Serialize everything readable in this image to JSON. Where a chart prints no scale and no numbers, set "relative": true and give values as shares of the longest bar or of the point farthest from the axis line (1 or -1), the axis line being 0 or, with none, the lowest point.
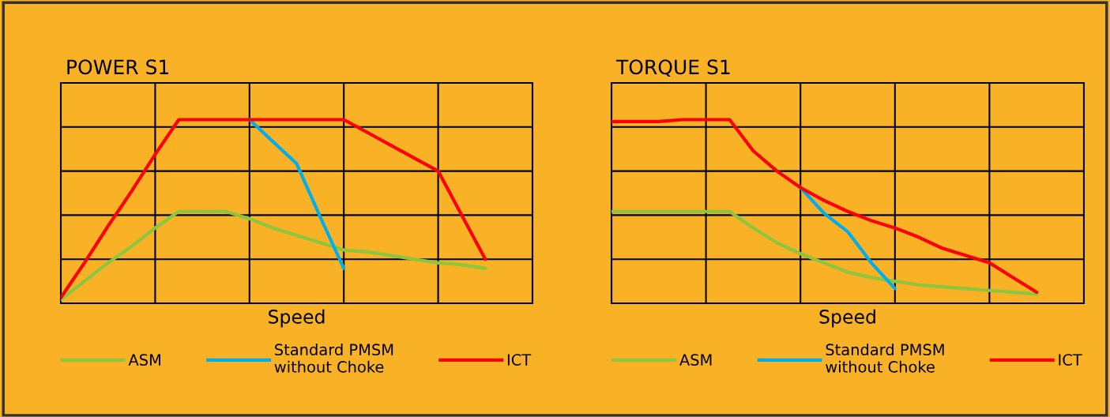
{
  "chart_data": [
    {
      "type": "line",
      "title": "POWER S1",
      "xlabel": "Speed",
      "relative": true,
      "grid": true,
      "legend": "bottom",
      "marker": "none",
      "line_style": "solid",
      "categories": [
        null,
        null,
        null,
        null,
        null,
        null,
        null,
        null,
        null,
        null,
        null,
        null,
        null,
        null,
        null,
        null,
        null,
        null,
        null,
        null,
        null
      ],
      "series": [
        {
          "name": "ASM",
          "color": "#8cc63f",
          "values": [
            0.02,
            0.12,
            0.22,
            0.31,
            0.41,
            0.5,
            0.5,
            0.5,
            0.46,
            0.41,
            0.37,
            0.33,
            0.29,
            0.28,
            0.26,
            0.24,
            0.22,
            0.21,
            0.19,
            null,
            null
          ]
        },
        {
          "name": "Standard PMSM\nwithout Choke",
          "color": "#00aeef",
          "values": [
            null,
            null,
            null,
            null,
            null,
            null,
            null,
            null,
            1,
            0.88,
            0.76,
            0.47,
            0.19,
            null,
            null,
            null,
            null,
            null,
            null,
            null,
            null
          ]
        },
        {
          "name": "ICT",
          "color": "#ff0000",
          "values": [
            0.03,
            0.22,
            0.42,
            0.61,
            0.81,
            1,
            1,
            1,
            1,
            1,
            1,
            1,
            1,
            0.93,
            0.86,
            0.79,
            0.72,
            0.48,
            0.24,
            null,
            null
          ]
        }
      ]
    },
    {
      "type": "line",
      "title": "TORQUE S1",
      "xlabel": "Speed",
      "relative": true,
      "grid": true,
      "legend": "bottom",
      "marker": "none",
      "line_style": "solid",
      "categories": [
        null,
        null,
        null,
        null,
        null,
        null,
        null,
        null,
        null,
        null,
        null,
        null,
        null,
        null,
        null,
        null,
        null,
        null,
        null,
        null,
        null
      ],
      "series": [
        {
          "name": "ASM",
          "color": "#8cc63f",
          "values": [
            0.5,
            0.5,
            0.5,
            0.5,
            0.5,
            0.5,
            0.41,
            0.33,
            0.27,
            0.22,
            0.17,
            0.14,
            0.12,
            0.1,
            0.09,
            0.08,
            0.07,
            0.06,
            0.05,
            null,
            null
          ]
        },
        {
          "name": "Standard PMSM\nwithout Choke",
          "color": "#00aeef",
          "values": [
            null,
            null,
            null,
            null,
            null,
            null,
            null,
            null,
            0.63,
            0.49,
            0.39,
            0.22,
            0.08,
            null,
            null,
            null,
            null,
            null,
            null,
            null,
            null
          ]
        },
        {
          "name": "ICT",
          "color": "#ff0000",
          "values": [
            0.99,
            0.99,
            0.99,
            1,
            1,
            1,
            0.83,
            0.72,
            0.63,
            0.56,
            0.5,
            0.45,
            0.41,
            0.36,
            0.3,
            0.26,
            0.22,
            0.14,
            0.06,
            null,
            null
          ]
        }
      ]
    }
  ]
}
